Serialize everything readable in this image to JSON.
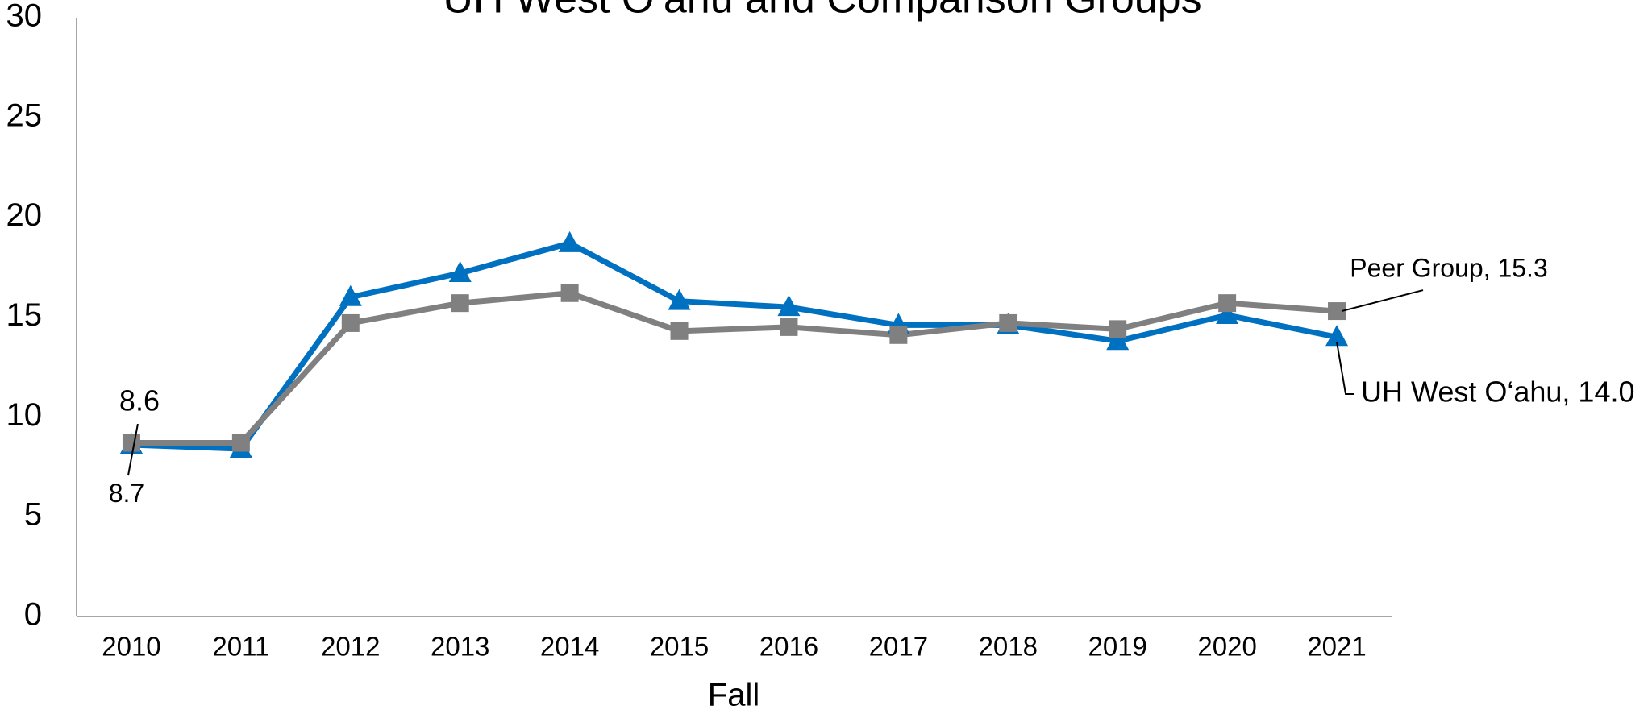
{
  "chart_data": {
    "type": "line",
    "title": "UH West O‘ahu and Comparison Groups",
    "x_label": "Fall",
    "categories": [
      "2010",
      "2011",
      "2012",
      "2013",
      "2014",
      "2015",
      "2016",
      "2017",
      "2018",
      "2019",
      "2020",
      "2021"
    ],
    "series": [
      {
        "name": "UH West O‘ahu",
        "color": "#0070C0",
        "marker": "triangle",
        "values": [
          8.6,
          8.4,
          16.0,
          17.2,
          18.7,
          15.8,
          15.5,
          14.6,
          14.6,
          13.8,
          15.1,
          14.0
        ],
        "value_labels": [
          "8.6",
          null,
          null,
          null,
          null,
          null,
          null,
          null,
          null,
          null,
          null,
          "UH West O‘ahu, 14.0"
        ]
      },
      {
        "name": "Peer Group",
        "color": "#808080",
        "marker": "square",
        "values": [
          8.7,
          8.7,
          14.7,
          15.7,
          16.2,
          14.3,
          14.5,
          14.1,
          14.7,
          14.4,
          15.7,
          15.3
        ],
        "value_labels": [
          "8.7",
          null,
          null,
          null,
          null,
          null,
          null,
          null,
          null,
          null,
          null,
          "Peer Group, 15.3"
        ]
      }
    ],
    "ylim": [
      0,
      30
    ],
    "yticks": [
      0,
      5,
      10,
      15,
      20,
      25,
      30
    ],
    "grid": false
  }
}
